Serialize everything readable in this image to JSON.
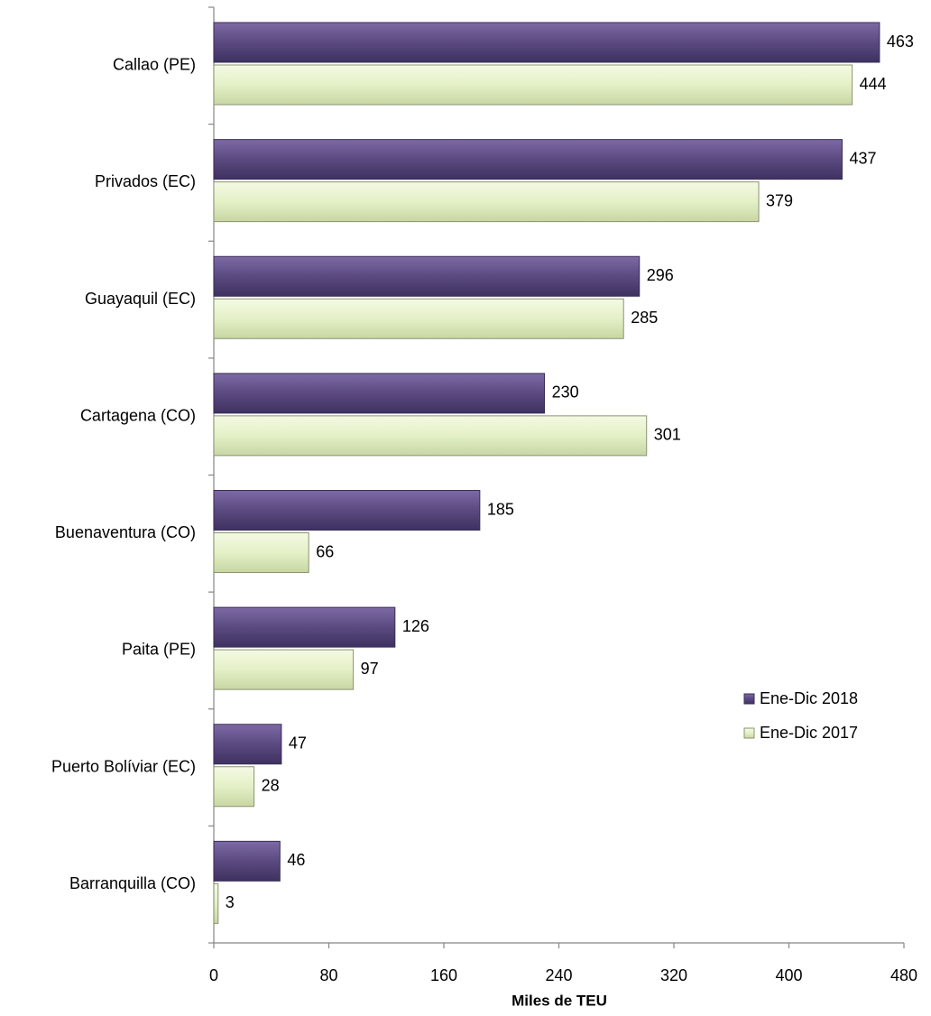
{
  "chart_data": {
    "type": "bar",
    "orientation": "horizontal",
    "x_label": "Miles de TEU",
    "categories": [
      "Callao (PE)",
      "Privados (EC)",
      "Guayaquil (EC)",
      "Cartagena (CO)",
      "Buenaventura (CO)",
      "Paita (PE)",
      "Puerto Bolíviar (EC)",
      "Barranquilla (CO)"
    ],
    "series": [
      {
        "name": "Ene-Dic 2018",
        "color": "#5b4a80",
        "values": [
          463,
          437,
          296,
          230,
          185,
          126,
          47,
          46
        ]
      },
      {
        "name": "Ene-Dic 2017",
        "color": "#e4f0c6",
        "values": [
          444,
          379,
          285,
          301,
          66,
          97,
          28,
          3
        ]
      }
    ],
    "xlim": [
      0,
      480
    ],
    "xticks": [
      0,
      80,
      160,
      240,
      320,
      400,
      480
    ],
    "legend": "right"
  }
}
